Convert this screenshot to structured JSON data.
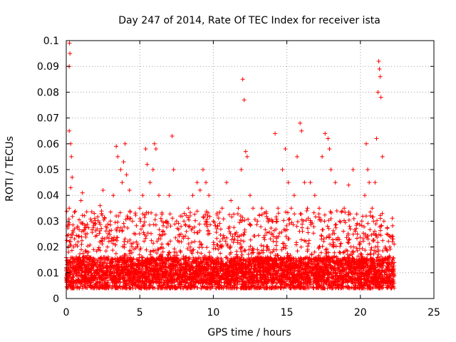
{
  "chart_data": {
    "type": "scatter",
    "title": "Day 247 of 2014, Rate Of TEC Index for receiver ista",
    "xlabel": "GPS time / hours",
    "ylabel": "ROTI / TECUs",
    "xlim": [
      0,
      25
    ],
    "ylim": [
      0,
      0.1
    ],
    "x_ticks": [
      "0",
      "5",
      "10",
      "15",
      "20",
      "25"
    ],
    "y_ticks": [
      "0",
      "0.01",
      "0.02",
      "0.03",
      "0.04",
      "0.05",
      "0.06",
      "0.07",
      "0.08",
      "0.09",
      "0.1"
    ],
    "grid": true,
    "marker": "plus",
    "color": "#ff0000",
    "series": [
      {
        "points": [
          [
            0.1,
            0.012
          ],
          [
            0.15,
            0.018
          ],
          [
            0.2,
            0.065
          ],
          [
            0.22,
            0.099
          ],
          [
            0.25,
            0.095
          ],
          [
            0.2,
            0.09
          ],
          [
            0.3,
            0.06
          ],
          [
            0.35,
            0.055
          ],
          [
            0.4,
            0.047
          ],
          [
            0.3,
            0.043
          ],
          [
            0.2,
            0.035
          ],
          [
            0.1,
            0.028
          ],
          [
            0.5,
            0.02
          ],
          [
            0.6,
            0.015
          ],
          [
            0.8,
            0.022
          ],
          [
            1.0,
            0.038
          ],
          [
            1.1,
            0.041
          ],
          [
            1.3,
            0.025
          ],
          [
            1.5,
            0.018
          ],
          [
            1.7,
            0.03
          ],
          [
            1.9,
            0.033
          ],
          [
            2.1,
            0.027
          ],
          [
            2.3,
            0.036
          ],
          [
            2.5,
            0.042
          ],
          [
            2.7,
            0.028
          ],
          [
            2.8,
            0.02
          ],
          [
            3.0,
            0.03
          ],
          [
            3.2,
            0.04
          ],
          [
            3.4,
            0.059
          ],
          [
            3.5,
            0.055
          ],
          [
            3.7,
            0.05
          ],
          [
            3.8,
            0.045
          ],
          [
            3.9,
            0.053
          ],
          [
            4.0,
            0.06
          ],
          [
            4.1,
            0.048
          ],
          [
            4.3,
            0.042
          ],
          [
            4.5,
            0.03
          ],
          [
            4.7,
            0.025
          ],
          [
            5.0,
            0.035
          ],
          [
            5.2,
            0.04
          ],
          [
            5.4,
            0.058
          ],
          [
            5.5,
            0.052
          ],
          [
            5.7,
            0.045
          ],
          [
            5.9,
            0.05
          ],
          [
            6.0,
            0.06
          ],
          [
            6.1,
            0.058
          ],
          [
            6.3,
            0.04
          ],
          [
            6.5,
            0.03
          ],
          [
            6.7,
            0.025
          ],
          [
            7.0,
            0.04
          ],
          [
            7.2,
            0.063
          ],
          [
            7.3,
            0.05
          ],
          [
            7.5,
            0.03
          ],
          [
            7.8,
            0.025
          ],
          [
            8.0,
            0.03
          ],
          [
            8.3,
            0.035
          ],
          [
            8.6,
            0.04
          ],
          [
            8.9,
            0.045
          ],
          [
            9.1,
            0.042
          ],
          [
            9.3,
            0.05
          ],
          [
            9.5,
            0.045
          ],
          [
            9.7,
            0.04
          ],
          [
            10.0,
            0.03
          ],
          [
            10.3,
            0.028
          ],
          [
            10.6,
            0.035
          ],
          [
            10.9,
            0.045
          ],
          [
            11.2,
            0.038
          ],
          [
            11.5,
            0.025
          ],
          [
            11.7,
            0.035
          ],
          [
            11.9,
            0.05
          ],
          [
            12.0,
            0.085
          ],
          [
            12.1,
            0.077
          ],
          [
            12.2,
            0.057
          ],
          [
            12.3,
            0.055
          ],
          [
            12.5,
            0.04
          ],
          [
            12.7,
            0.035
          ],
          [
            13.0,
            0.03
          ],
          [
            13.3,
            0.035
          ],
          [
            13.6,
            0.033
          ],
          [
            14.0,
            0.03
          ],
          [
            14.2,
            0.064
          ],
          [
            14.4,
            0.035
          ],
          [
            14.7,
            0.05
          ],
          [
            14.9,
            0.058
          ],
          [
            15.1,
            0.045
          ],
          [
            15.3,
            0.035
          ],
          [
            15.5,
            0.04
          ],
          [
            15.7,
            0.055
          ],
          [
            15.9,
            0.068
          ],
          [
            16.0,
            0.065
          ],
          [
            16.2,
            0.045
          ],
          [
            16.4,
            0.035
          ],
          [
            16.6,
            0.045
          ],
          [
            16.9,
            0.04
          ],
          [
            17.2,
            0.035
          ],
          [
            17.4,
            0.055
          ],
          [
            17.6,
            0.064
          ],
          [
            17.8,
            0.062
          ],
          [
            17.9,
            0.058
          ],
          [
            18.0,
            0.05
          ],
          [
            18.3,
            0.045
          ],
          [
            18.6,
            0.03
          ],
          [
            18.9,
            0.035
          ],
          [
            19.2,
            0.044
          ],
          [
            19.5,
            0.05
          ],
          [
            19.8,
            0.025
          ],
          [
            20.1,
            0.03
          ],
          [
            20.3,
            0.04
          ],
          [
            20.4,
            0.06
          ],
          [
            20.5,
            0.05
          ],
          [
            20.6,
            0.045
          ],
          [
            20.8,
            0.035
          ],
          [
            21.0,
            0.045
          ],
          [
            21.1,
            0.062
          ],
          [
            21.2,
            0.08
          ],
          [
            21.25,
            0.092
          ],
          [
            21.3,
            0.089
          ],
          [
            21.35,
            0.086
          ],
          [
            21.4,
            0.078
          ],
          [
            21.5,
            0.055
          ],
          [
            21.6,
            0.03
          ],
          [
            21.8,
            0.025
          ],
          [
            22.0,
            0.02
          ],
          [
            22.2,
            0.015
          ]
        ]
      }
    ]
  }
}
